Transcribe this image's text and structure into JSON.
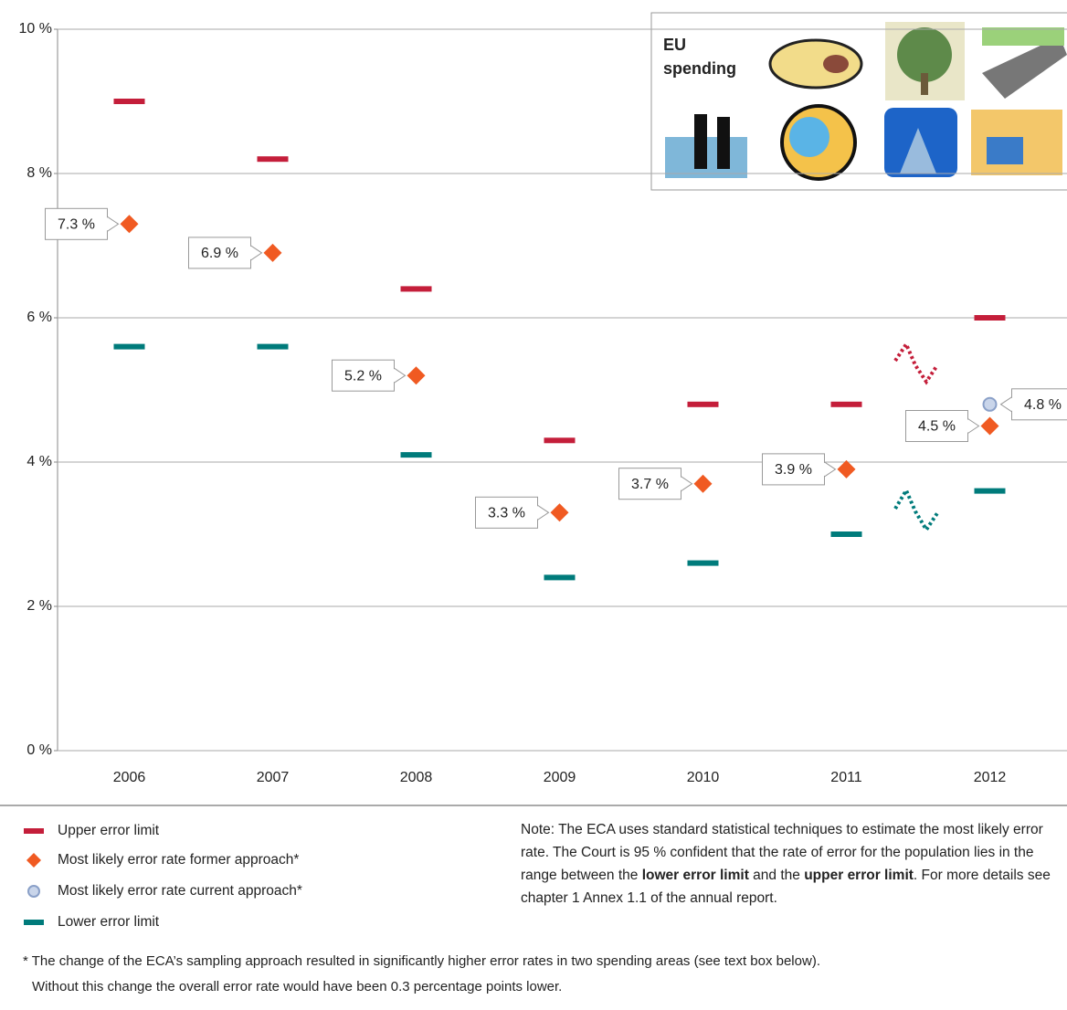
{
  "chart_data": {
    "type": "error-range",
    "categories": [
      "2006",
      "2007",
      "2008",
      "2009",
      "2010",
      "2011",
      "2012"
    ],
    "series": [
      {
        "name": "Upper error limit",
        "color": "#c41e3a",
        "marker": "bar",
        "values": [
          9.0,
          8.2,
          6.4,
          4.3,
          4.8,
          4.8,
          6.0
        ]
      },
      {
        "name": "Most likely error rate former approach*",
        "color": "#f05a22",
        "marker": "diamond",
        "values": [
          7.3,
          6.9,
          5.2,
          3.3,
          3.7,
          3.9,
          4.5
        ],
        "value_labels": [
          "7.3 %",
          "6.9 %",
          "5.2 %",
          "3.3 %",
          "3.7 %",
          "3.9 %",
          "4.5 %"
        ]
      },
      {
        "name": "Most likely error rate current approach*",
        "color": "#c9d5ea",
        "marker": "circle",
        "values": [
          null,
          null,
          null,
          null,
          null,
          null,
          4.8
        ],
        "value_labels": [
          null,
          null,
          null,
          null,
          null,
          null,
          "4.8 %"
        ]
      },
      {
        "name": "Lower error limit",
        "color": "#007b7b",
        "marker": "bar",
        "values": [
          5.6,
          5.6,
          4.1,
          2.4,
          2.6,
          3.0,
          3.6
        ]
      }
    ],
    "ylim": [
      0,
      10
    ],
    "yticks": [
      {
        "value": 0,
        "label": "0 %"
      },
      {
        "value": 2,
        "label": "2 %"
      },
      {
        "value": 4,
        "label": "4 %"
      },
      {
        "value": 6,
        "label": "6 %"
      },
      {
        "value": 8,
        "label": "8 %"
      },
      {
        "value": 10,
        "label": "10 %"
      }
    ],
    "grid": true,
    "inset_title": [
      "EU",
      "spending"
    ],
    "note": [
      "Note: The ECA uses standard statistical techniques to estimate the most likely error rate. The Court is 95 % confident that the rate of error for the population lies in the range between the ",
      "lower error limit",
      " and the ",
      "upper error limit",
      ". For more details see chapter 1 Annex 1.1 of the annual report."
    ],
    "footnote": [
      "* The change of the ECA’s sampling approach resulted in significantly higher error rates in two spending areas (see text box below).",
      "Without this change the overall error rate would have been 0.3 percentage points lower."
    ]
  }
}
